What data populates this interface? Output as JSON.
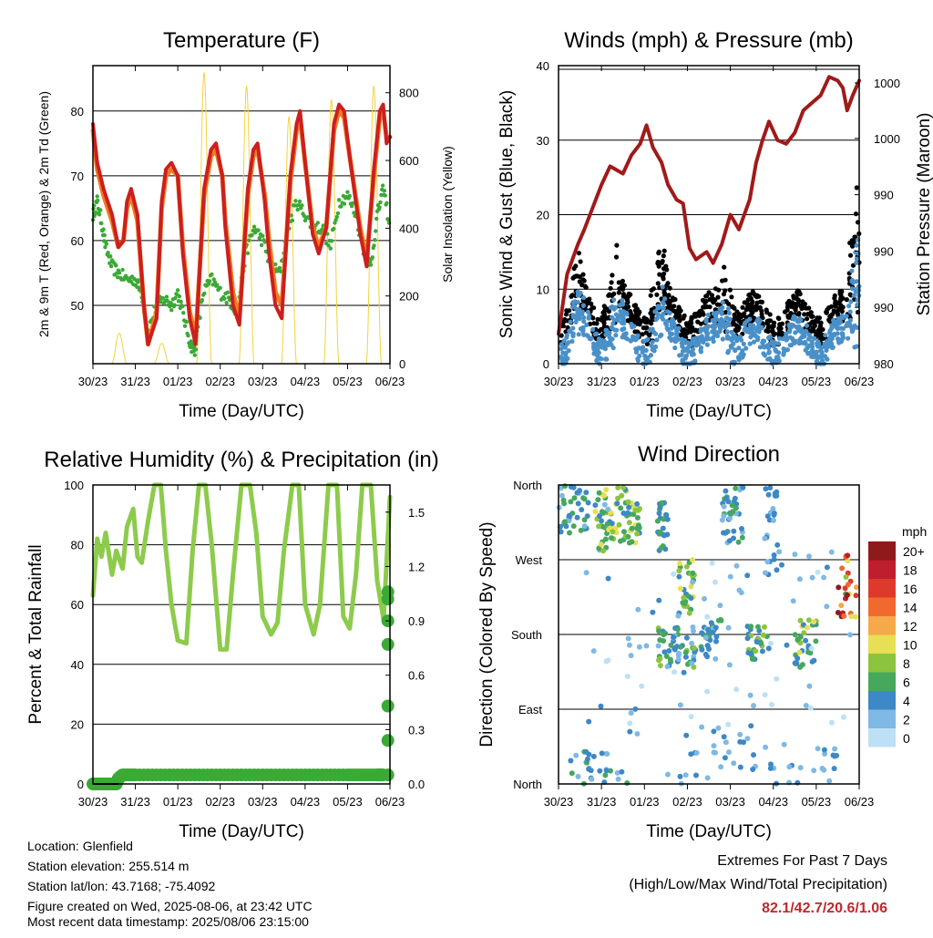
{
  "info": {
    "location": "Location: Glenfield",
    "elevation": "Station elevation: 255.514 m",
    "latlon": "Station lat/lon: 43.7168; -75.4092",
    "created": "Figure created on Wed, 2025-08-06, at 23:42 UTC",
    "recent": "Most recent data timestamp: 2025/08/06 23:15:00"
  },
  "extremes": {
    "title": "Extremes For Past 7 Days",
    "subtitle": "(High/Low/Max Wind/Total Precipitation)",
    "values": "82.1/42.7/20.6/1.06",
    "value_color": "#c0282d"
  },
  "chart_data": [
    {
      "type": "line",
      "title": "Temperature (F)",
      "xlabel": "Time (Day/UTC)",
      "ylabel": "2m & 9m T (Red, Orange) & 2m Td (Green)",
      "y2label": "Solar Insolation (Yellow)",
      "x_ticks": [
        "30/23",
        "31/23",
        "01/23",
        "02/23",
        "03/23",
        "04/23",
        "05/23",
        "06/23"
      ],
      "xlim": [
        0,
        7
      ],
      "ylim": [
        41,
        87
      ],
      "y_ticks": [
        50,
        60,
        70,
        80
      ],
      "y2lim": [
        0,
        880
      ],
      "y2_ticks": [
        0,
        200,
        400,
        600,
        800
      ],
      "grid": "horizontal",
      "series_colors": {
        "t2m": "#cc1f1f",
        "t9m": "#f07c1c",
        "td": "#3aaa35",
        "solar": "#f2d23c"
      },
      "t2m": {
        "x": [
          0,
          0.1,
          0.25,
          0.45,
          0.6,
          0.72,
          0.8,
          0.9,
          1.05,
          1.2,
          1.3,
          1.5,
          1.62,
          1.72,
          1.85,
          2.0,
          2.12,
          2.28,
          2.42,
          2.62,
          2.78,
          2.9,
          3.05,
          3.12,
          3.3,
          3.45,
          3.65,
          3.78,
          3.88,
          4.05,
          4.15,
          4.3,
          4.45,
          4.65,
          4.8,
          4.88,
          5.0,
          5.18,
          5.32,
          5.5,
          5.68,
          5.8,
          5.92,
          6.05,
          6.3,
          6.45,
          6.62,
          6.76,
          6.84,
          6.92,
          7.0
        ],
        "y": [
          78,
          72,
          68,
          64,
          59,
          60,
          66,
          68,
          64,
          50,
          44,
          48,
          66,
          71,
          72,
          70,
          58,
          48,
          44,
          68,
          74,
          75,
          70,
          62,
          50,
          47,
          68,
          74,
          75,
          66,
          58,
          50,
          48,
          70,
          78,
          80,
          72,
          61,
          58,
          62,
          78,
          81,
          80,
          73,
          61,
          56,
          71,
          80,
          81,
          75,
          76
        ]
      },
      "t9m": {
        "x": [
          0,
          0.1,
          0.25,
          0.45,
          0.6,
          0.72,
          0.8,
          0.9,
          1.05,
          1.2,
          1.3,
          1.5,
          1.62,
          1.72,
          1.85,
          2.0,
          2.12,
          2.28,
          2.42,
          2.62,
          2.78,
          2.9,
          3.05,
          3.12,
          3.3,
          3.45,
          3.65,
          3.78,
          3.88,
          4.05,
          4.15,
          4.3,
          4.45,
          4.65,
          4.8,
          4.88,
          5.0,
          5.18,
          5.32,
          5.5,
          5.68,
          5.8,
          5.92,
          6.05,
          6.3,
          6.45,
          6.62,
          6.76,
          6.84,
          6.92,
          7.0
        ],
        "y": [
          77,
          71,
          67,
          63,
          59,
          60,
          65,
          67,
          63,
          50,
          44,
          49,
          65,
          70,
          71,
          70,
          59,
          49,
          45,
          67,
          73,
          74,
          70,
          63,
          52,
          48,
          67,
          73,
          74,
          67,
          60,
          52,
          50,
          69,
          77,
          79,
          72,
          62,
          59,
          62,
          77,
          80,
          79,
          73,
          62,
          57,
          70,
          79,
          80,
          76,
          76
        ]
      },
      "td": {
        "x": [
          0,
          0.1,
          0.2,
          0.3,
          0.45,
          0.6,
          0.8,
          1.0,
          1.15,
          1.3,
          1.5,
          1.7,
          1.85,
          2.0,
          2.15,
          2.3,
          2.4,
          2.6,
          2.8,
          3.0,
          3.2,
          3.4,
          3.6,
          3.8,
          4.0,
          4.2,
          4.4,
          4.6,
          4.8,
          5.0,
          5.2,
          5.4,
          5.6,
          5.8,
          6.0,
          6.2,
          6.4,
          6.55,
          6.7,
          6.85,
          7.0
        ],
        "y": [
          64,
          66,
          63,
          59,
          56,
          55,
          54,
          54,
          52,
          46,
          50,
          51,
          50,
          52,
          48,
          44,
          43,
          52,
          54,
          52,
          51,
          49,
          58,
          62,
          60,
          56,
          55,
          62,
          66,
          64,
          62,
          62,
          59,
          66,
          67,
          64,
          58,
          56,
          64,
          68,
          62
        ]
      },
      "solar": {
        "days": [
          0,
          1,
          2,
          3,
          4,
          5,
          6
        ],
        "peaks": [
          90,
          60,
          860,
          820,
          730,
          780,
          820
        ],
        "halfwidth": 0.18
      }
    },
    {
      "type": "line",
      "title": "Winds (mph) & Pressure (mb)",
      "xlabel": "Time (Day/UTC)",
      "ylabel": "Sonic Wind & Gust (Blue, Black)",
      "y2label": "Station Pressure (Maroon)",
      "x_ticks": [
        "30/23",
        "31/23",
        "01/23",
        "02/23",
        "03/23",
        "04/23",
        "05/23",
        "06/23"
      ],
      "xlim": [
        0,
        7
      ],
      "ylim": [
        0,
        40
      ],
      "y_ticks": [
        0,
        10,
        20,
        30,
        40
      ],
      "y2_tick_labels": [
        "980",
        "990",
        "990",
        "990",
        "1000",
        "1000"
      ],
      "grid": "horizontal",
      "series_colors": {
        "wind": "#4a90c8",
        "gust": "#000000",
        "pressure": "#a01a1a"
      },
      "pressure": {
        "x": [
          0,
          0.2,
          0.45,
          0.6,
          0.8,
          1.0,
          1.2,
          1.5,
          1.7,
          1.9,
          2.05,
          2.2,
          2.4,
          2.55,
          2.75,
          2.9,
          3.05,
          3.2,
          3.45,
          3.6,
          3.8,
          4.0,
          4.2,
          4.45,
          4.6,
          4.75,
          4.9,
          5.1,
          5.3,
          5.5,
          5.7,
          5.9,
          6.1,
          6.3,
          6.5,
          6.62,
          6.72,
          6.85,
          7.0
        ],
        "y": [
          4,
          12,
          16,
          18,
          21,
          24,
          26.5,
          25.5,
          28,
          29.5,
          32,
          29,
          27,
          24,
          22,
          21.5,
          15.5,
          14,
          15,
          13.5,
          16,
          20,
          18,
          22,
          27,
          30,
          32.5,
          30,
          29.5,
          31,
          34,
          35,
          36,
          38.5,
          38,
          37,
          34,
          36,
          38
        ]
      },
      "gust_band": {
        "x_start": 0.05,
        "x_end": 7.0,
        "base": 6,
        "peaks": [
          [
            0.45,
            14
          ],
          [
            1.3,
            16
          ],
          [
            2.35,
            16
          ],
          [
            3.9,
            14
          ],
          [
            6.95,
            27
          ]
        ]
      },
      "wind_band": {
        "x_start": 0.05,
        "x_end": 7.0,
        "base": 3,
        "peaks": [
          [
            0.45,
            8
          ],
          [
            1.3,
            10
          ],
          [
            2.35,
            9
          ],
          [
            3.9,
            9
          ],
          [
            6.95,
            20
          ]
        ]
      }
    },
    {
      "type": "line",
      "title": "Relative Humidity (%) & Precipitation (in)",
      "xlabel": "Time (Day/UTC)",
      "ylabel": "Percent & Total Rainfall",
      "x_ticks": [
        "30/23",
        "31/23",
        "01/23",
        "02/23",
        "03/23",
        "04/23",
        "05/23",
        "06/23"
      ],
      "xlim": [
        0,
        7
      ],
      "ylim": [
        0,
        100
      ],
      "y_ticks": [
        0,
        20,
        40,
        60,
        80,
        100
      ],
      "y2_tick_labels": [
        "0.0",
        "0.3",
        "0.6",
        "0.9",
        "1.2",
        "1.5"
      ],
      "y2lim": [
        0,
        1.65
      ],
      "grid": "horizontal",
      "series_colors": {
        "rh": "#8dcb4c",
        "precip": "#3aaa35"
      },
      "rh": {
        "x": [
          0,
          0.1,
          0.2,
          0.3,
          0.45,
          0.55,
          0.7,
          0.8,
          0.95,
          1.05,
          1.15,
          1.3,
          1.45,
          1.6,
          1.72,
          1.85,
          2.0,
          2.2,
          2.35,
          2.5,
          2.65,
          2.8,
          3.0,
          3.15,
          3.3,
          3.5,
          3.7,
          3.85,
          4.0,
          4.2,
          4.35,
          4.5,
          4.7,
          4.85,
          5.0,
          5.2,
          5.35,
          5.55,
          5.75,
          5.9,
          6.05,
          6.2,
          6.35,
          6.55,
          6.7,
          6.85,
          7.0
        ],
        "y": [
          63,
          82,
          76,
          84,
          70,
          78,
          72,
          86,
          92,
          76,
          74,
          88,
          100,
          100,
          78,
          60,
          48,
          47,
          78,
          100,
          100,
          80,
          45,
          45,
          70,
          100,
          100,
          84,
          56,
          50,
          54,
          78,
          100,
          100,
          60,
          50,
          60,
          100,
          100,
          56,
          52,
          70,
          100,
          100,
          68,
          55,
          96
        ]
      },
      "precip": {
        "x": [
          0,
          0.3,
          0.55,
          0.6,
          0.7,
          1.0,
          2.0,
          3.0,
          4.0,
          5.0,
          6.0,
          6.7,
          6.85
        ],
        "y": [
          0,
          0,
          0,
          0.03,
          0.05,
          0.05,
          0.05,
          0.05,
          0.05,
          0.05,
          0.05,
          0.05,
          0.05
        ]
      },
      "precip_jump": {
        "x": 6.95,
        "y": [
          0.05,
          0.24,
          0.43,
          0.77,
          0.9,
          1.02,
          1.06
        ]
      }
    },
    {
      "type": "scatter",
      "title": "Wind Direction",
      "xlabel": "Time (Day/UTC)",
      "ylabel": "Direction (Colored By Speed)",
      "x_ticks": [
        "30/23",
        "31/23",
        "01/23",
        "02/23",
        "03/23",
        "04/23",
        "05/23",
        "06/23"
      ],
      "xlim": [
        0,
        7
      ],
      "y_categories": [
        "North",
        "East",
        "South",
        "West",
        "North"
      ],
      "ylim": [
        0,
        360
      ],
      "grid": "horizontal",
      "legend_title": "mph",
      "legend_labels": [
        "20+",
        "18",
        "16",
        "14",
        "12",
        "10",
        "8",
        "6",
        "4",
        "2",
        "0"
      ],
      "legend_colors": [
        "#8e1a1a",
        "#be1e2d",
        "#de3a2c",
        "#f06a30",
        "#f6a94a",
        "#e8df54",
        "#8cc43f",
        "#45a85c",
        "#3d88c6",
        "#7fb9e4",
        "#bde0f5"
      ],
      "clusters": [
        {
          "x": [
            0.0,
            0.7
          ],
          "dir": [
            300,
            360
          ],
          "speed": [
            2,
            7
          ],
          "n": 40
        },
        {
          "x": [
            0.85,
            1.6
          ],
          "dir": [
            280,
            360
          ],
          "speed": [
            2,
            10
          ],
          "n": 60
        },
        {
          "x": [
            1.5,
            1.9
          ],
          "dir": [
            290,
            340
          ],
          "speed": [
            4,
            10
          ],
          "n": 30
        },
        {
          "x": [
            2.3,
            2.55
          ],
          "dir": [
            280,
            340
          ],
          "speed": [
            3,
            7
          ],
          "n": 25
        },
        {
          "x": [
            2.3,
            3.2
          ],
          "dir": [
            140,
            190
          ],
          "speed": [
            2,
            8
          ],
          "n": 50
        },
        {
          "x": [
            2.8,
            3.2
          ],
          "dir": [
            200,
            270
          ],
          "speed": [
            4,
            10
          ],
          "n": 30
        },
        {
          "x": [
            3.3,
            3.8
          ],
          "dir": [
            150,
            200
          ],
          "speed": [
            2,
            6
          ],
          "n": 30
        },
        {
          "x": [
            3.8,
            4.3
          ],
          "dir": [
            290,
            360
          ],
          "speed": [
            2,
            6
          ],
          "n": 40
        },
        {
          "x": [
            4.4,
            4.9
          ],
          "dir": [
            150,
            190
          ],
          "speed": [
            3,
            8
          ],
          "n": 30
        },
        {
          "x": [
            4.8,
            5.1
          ],
          "dir": [
            250,
            360
          ],
          "speed": [
            2,
            5
          ],
          "n": 25
        },
        {
          "x": [
            5.5,
            6.0
          ],
          "dir": [
            140,
            200
          ],
          "speed": [
            3,
            10
          ],
          "n": 35
        },
        {
          "x": [
            6.5,
            6.95
          ],
          "dir": [
            200,
            280
          ],
          "speed": [
            6,
            20
          ],
          "n": 25
        },
        {
          "x": [
            0.2,
            1.8
          ],
          "dir": [
            0,
            40
          ],
          "speed": [
            1,
            6
          ],
          "n": 30
        },
        {
          "x": [
            2.5,
            6.5
          ],
          "dir": [
            0,
            60
          ],
          "speed": [
            1,
            5
          ],
          "n": 50
        },
        {
          "x": [
            0.5,
            6.8
          ],
          "dir": [
            60,
            280
          ],
          "speed": [
            0,
            4
          ],
          "n": 80
        }
      ]
    }
  ]
}
